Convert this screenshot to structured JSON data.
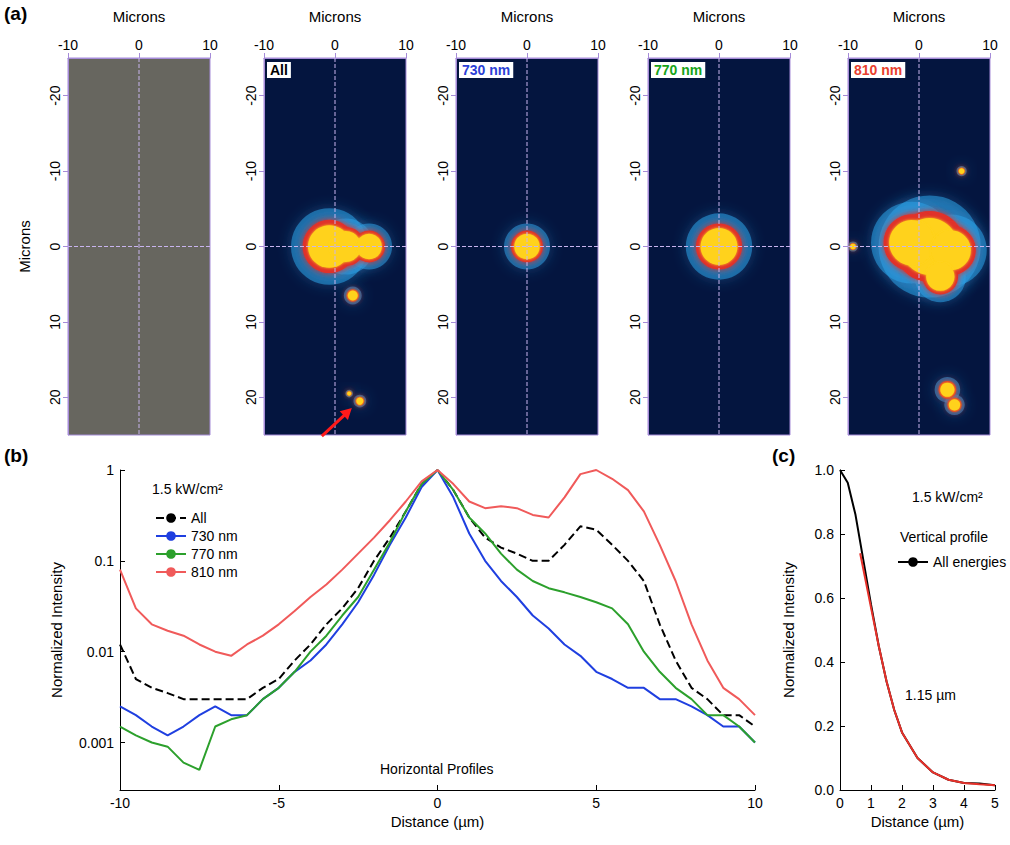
{
  "chart_data": [
    {
      "panel": "(a)",
      "type": "image",
      "xlabel": "Microns",
      "ylabel": "Microns",
      "xlim": [
        -10,
        10
      ],
      "xticks": [
        -10,
        0,
        10
      ],
      "ylim": [
        -25,
        25
      ],
      "yticks": [
        -20,
        -10,
        0,
        10,
        20
      ],
      "crosshair": {
        "x": 0,
        "y": 0
      }
    },
    {
      "type": "heatmap",
      "title": "All",
      "color": "#000000",
      "xlabel": "Microns",
      "xlim": [
        -10,
        10
      ],
      "xticks": [
        -10,
        0,
        10
      ],
      "ylim": [
        -25,
        25
      ],
      "yticks": [
        -20,
        -10,
        0,
        10,
        20
      ],
      "crosshair": {
        "x": 0,
        "y": 0
      },
      "spots": [
        [
          -0.8,
          0,
          3
        ],
        [
          1.5,
          0,
          2.2
        ],
        [
          4.8,
          0,
          1.8
        ],
        [
          2.5,
          6.5,
          0.7
        ],
        [
          2,
          19.5,
          0.3
        ],
        [
          3.5,
          20.5,
          0.5
        ]
      ]
    },
    {
      "type": "heatmap",
      "title": "730 nm",
      "color": "#2b3fd6",
      "xlabel": "Microns",
      "xlim": [
        -10,
        10
      ],
      "xticks": [
        -10,
        0,
        10
      ],
      "ylim": [
        -25,
        25
      ],
      "yticks": [
        -20,
        -10,
        0,
        10,
        20
      ],
      "crosshair": {
        "x": 0,
        "y": 0
      },
      "spots": [
        [
          0,
          0,
          1.8
        ]
      ]
    },
    {
      "type": "heatmap",
      "title": "770 nm",
      "color": "#17a31a",
      "xlabel": "Microns",
      "xlim": [
        -10,
        10
      ],
      "xticks": [
        -10,
        0,
        10
      ],
      "ylim": [
        -25,
        25
      ],
      "yticks": [
        -20,
        -10,
        0,
        10,
        20
      ],
      "crosshair": {
        "x": 0,
        "y": 0
      },
      "spots": [
        [
          0,
          0,
          2.6
        ]
      ]
    },
    {
      "type": "heatmap",
      "title": "810 nm",
      "color": "#e8402e",
      "xlabel": "Microns",
      "xlim": [
        -10,
        10
      ],
      "xticks": [
        -10,
        0,
        10
      ],
      "ylim": [
        -25,
        25
      ],
      "yticks": [
        -20,
        -10,
        0,
        10,
        20
      ],
      "crosshair": {
        "x": 0,
        "y": 0
      },
      "spots": [
        [
          1.5,
          0,
          4
        ],
        [
          -1,
          -0.5,
          3.2
        ],
        [
          4.5,
          0.5,
          2.8
        ],
        [
          3,
          4,
          2
        ],
        [
          6,
          -10,
          0.4
        ],
        [
          4,
          19,
          1
        ],
        [
          5,
          21,
          0.8
        ],
        [
          -9.3,
          0,
          0.4
        ]
      ]
    },
    {
      "panel": "(b)",
      "type": "line",
      "xlabel": "Distance (µm)",
      "ylabel": "Normalized Intensity",
      "xlim": [
        -10,
        10
      ],
      "xticks": [
        -10,
        -5,
        0,
        5,
        10
      ],
      "ylim": [
        0.0003,
        1
      ],
      "yticks": [
        0.001,
        0.01,
        0.1,
        1
      ],
      "log": "y",
      "grid": false,
      "legend": "upper left",
      "annotations": [
        "1.5 kW/cm²",
        "Horizontal Profiles"
      ],
      "x": [
        -10,
        -9.5,
        -9,
        -8.5,
        -8,
        -7.5,
        -7,
        -6.5,
        -6,
        -5.5,
        -5,
        -4.5,
        -4,
        -3.5,
        -3,
        -2.5,
        -2,
        -1.5,
        -1,
        -0.5,
        0,
        0.5,
        1,
        1.5,
        2,
        2.5,
        3,
        3.5,
        4,
        4.5,
        5,
        5.5,
        6,
        6.5,
        7,
        7.5,
        8,
        8.5,
        9,
        9.5,
        10
      ],
      "series": [
        {
          "name": "All",
          "color": "#000000",
          "line_style": "dashed",
          "values": [
            0.012,
            0.005,
            0.004,
            0.0035,
            0.003,
            0.003,
            0.003,
            0.003,
            0.003,
            0.004,
            0.005,
            0.008,
            0.012,
            0.02,
            0.03,
            0.05,
            0.1,
            0.18,
            0.35,
            0.7,
            1,
            0.6,
            0.3,
            0.18,
            0.14,
            0.12,
            0.1,
            0.1,
            0.15,
            0.24,
            0.22,
            0.15,
            0.1,
            0.06,
            0.02,
            0.008,
            0.004,
            0.003,
            0.002,
            0.002,
            0.0015
          ]
        },
        {
          "name": "730 nm",
          "color": "#1f3fe0",
          "line_style": "solid",
          "values": [
            0.0025,
            0.002,
            0.0015,
            0.0012,
            0.0015,
            0.002,
            0.0025,
            0.002,
            0.002,
            0.003,
            0.004,
            0.006,
            0.008,
            0.012,
            0.02,
            0.035,
            0.07,
            0.15,
            0.3,
            0.65,
            1,
            0.5,
            0.2,
            0.1,
            0.06,
            0.04,
            0.025,
            0.018,
            0.012,
            0.009,
            0.006,
            0.005,
            0.004,
            0.004,
            0.003,
            0.003,
            0.0025,
            0.002,
            0.0015,
            0.0015,
            0.001
          ]
        },
        {
          "name": "770 nm",
          "color": "#2ca02c",
          "line_style": "solid",
          "values": [
            0.0015,
            0.0012,
            0.001,
            0.0009,
            0.0006,
            0.0005,
            0.0015,
            0.0018,
            0.002,
            0.003,
            0.004,
            0.006,
            0.01,
            0.015,
            0.025,
            0.04,
            0.08,
            0.16,
            0.35,
            0.7,
            1,
            0.6,
            0.3,
            0.2,
            0.12,
            0.08,
            0.06,
            0.05,
            0.045,
            0.04,
            0.035,
            0.03,
            0.02,
            0.01,
            0.006,
            0.004,
            0.003,
            0.002,
            0.002,
            0.0015,
            0.001
          ]
        },
        {
          "name": "810 nm",
          "color": "#f05a5a",
          "line_style": "solid",
          "values": [
            0.08,
            0.03,
            0.02,
            0.017,
            0.015,
            0.012,
            0.01,
            0.009,
            0.012,
            0.015,
            0.02,
            0.028,
            0.04,
            0.055,
            0.08,
            0.12,
            0.18,
            0.28,
            0.45,
            0.75,
            1,
            0.7,
            0.45,
            0.38,
            0.4,
            0.38,
            0.32,
            0.3,
            0.5,
            0.9,
            1,
            0.8,
            0.6,
            0.35,
            0.15,
            0.06,
            0.02,
            0.008,
            0.004,
            0.003,
            0.002
          ]
        }
      ]
    },
    {
      "panel": "(c)",
      "type": "line",
      "xlabel": "Distance (µm)",
      "ylabel": "Normalized Intensity",
      "xlim": [
        0,
        5
      ],
      "xticks": [
        0,
        1,
        2,
        3,
        4,
        5
      ],
      "ylim": [
        0,
        1
      ],
      "yticks": [
        {
          "value": 0,
          "label": "0.0"
        },
        {
          "value": 0.2,
          "label": "0.2"
        },
        {
          "value": 0.4,
          "label": "0.4"
        },
        {
          "value": 0.6,
          "label": "0.6"
        },
        {
          "value": 0.8,
          "label": "0.8"
        },
        {
          "value": 1,
          "label": "1.0"
        }
      ],
      "grid": false,
      "legend": "upper right",
      "annotations": [
        "1.5 kW/cm²",
        "Vertical profile"
      ],
      "series": [
        {
          "name": "All energies",
          "color": "#000000",
          "line_style": "solid",
          "x": [
            0,
            0.25,
            0.5,
            0.75,
            1,
            1.25,
            1.5,
            1.75,
            2,
            2.5,
            3,
            3.5,
            4,
            4.5,
            5
          ],
          "values": [
            1,
            0.96,
            0.86,
            0.72,
            0.58,
            0.45,
            0.34,
            0.25,
            0.18,
            0.1,
            0.055,
            0.032,
            0.022,
            0.02,
            0.015
          ]
        },
        {
          "color": "#e8312a",
          "line_style": "solid",
          "label": "1.15 µm",
          "x": [
            0.65,
            1,
            1.25,
            1.5,
            1.75,
            2,
            2.5,
            3,
            3.5,
            4,
            4.5,
            5
          ],
          "values": [
            0.74,
            0.57,
            0.45,
            0.34,
            0.25,
            0.18,
            0.1,
            0.055,
            0.032,
            0.022,
            0.018,
            0.015
          ]
        }
      ]
    }
  ]
}
